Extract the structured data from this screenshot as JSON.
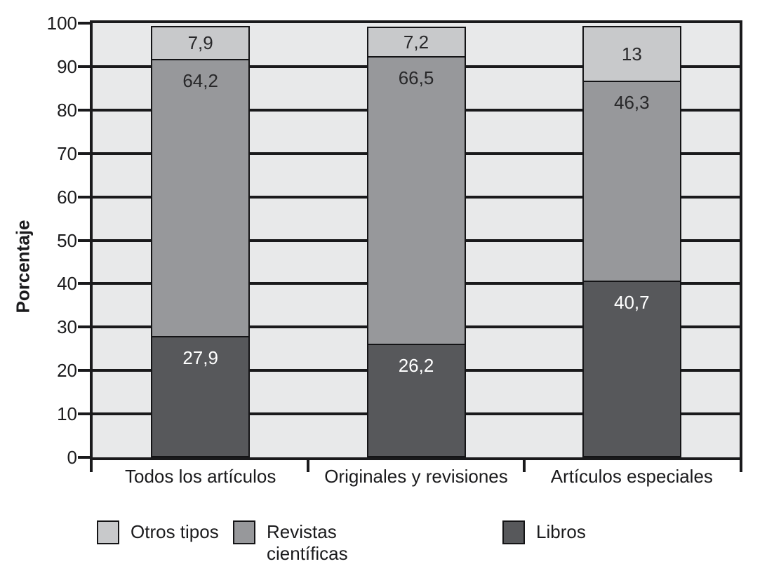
{
  "chart_data": {
    "type": "bar",
    "stacked": true,
    "title": "",
    "xlabel": "",
    "ylabel": "Porcentaje",
    "ylim": [
      0,
      100
    ],
    "yticks": [
      0,
      10,
      20,
      30,
      40,
      50,
      60,
      70,
      80,
      90,
      100
    ],
    "grid": "horizontal",
    "legend_position": "bottom",
    "categories": [
      "Todos los artículos",
      "Originales y revisiones",
      "Artículos especiales"
    ],
    "series": [
      {
        "name": "Libros",
        "color": "#57585b",
        "label_color": "#ffffff",
        "values": [
          27.9,
          26.2,
          40.7
        ],
        "labels": [
          "27,9",
          "26,2",
          "40,7"
        ]
      },
      {
        "name": "Revistas científicas",
        "color": "#97989b",
        "label_color": "#28282a",
        "values": [
          64.2,
          66.5,
          46.3
        ],
        "labels": [
          "64,2",
          "66,5",
          "46,3"
        ]
      },
      {
        "name": "Otros tipos",
        "color": "#c8c9cb",
        "label_color": "#28282a",
        "values": [
          7.9,
          7.2,
          13
        ],
        "labels": [
          "7,9",
          "7,2",
          "13"
        ]
      }
    ],
    "legend": [
      {
        "label": "Otros tipos",
        "color": "#c8c9cb"
      },
      {
        "label": "Revistas\ncientíficas",
        "color": "#97989b"
      },
      {
        "label": "Libros",
        "color": "#57585b"
      }
    ],
    "colors": {
      "plot_background": "#e8e9ea",
      "grid_line": "#1a1a1c",
      "page_background": "#ffffff",
      "text": "#1b1b1d"
    }
  }
}
